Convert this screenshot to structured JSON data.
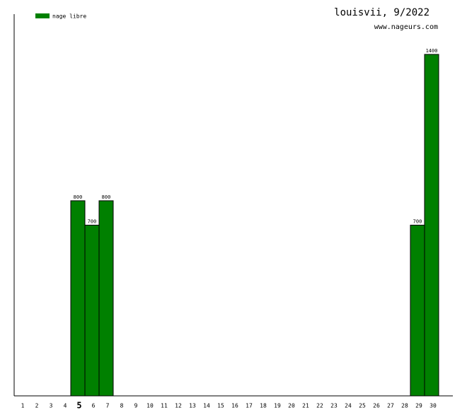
{
  "chart_data": {
    "type": "bar",
    "title": "louisvii, 9/2022",
    "subtitle": "www.nageurs.com",
    "categories": [
      "1",
      "2",
      "3",
      "4",
      "5",
      "6",
      "7",
      "8",
      "9",
      "10",
      "11",
      "12",
      "13",
      "14",
      "15",
      "16",
      "17",
      "18",
      "19",
      "20",
      "21",
      "22",
      "23",
      "24",
      "25",
      "26",
      "27",
      "28",
      "29",
      "30"
    ],
    "series": [
      {
        "name": "nage libre",
        "color": "#008000",
        "values": [
          null,
          null,
          null,
          null,
          800,
          700,
          800,
          null,
          null,
          null,
          null,
          null,
          null,
          null,
          null,
          null,
          null,
          null,
          null,
          null,
          null,
          null,
          null,
          null,
          null,
          null,
          null,
          null,
          700,
          1400
        ]
      }
    ],
    "ylim": [
      0,
      1565
    ],
    "highlight_index": 4
  }
}
